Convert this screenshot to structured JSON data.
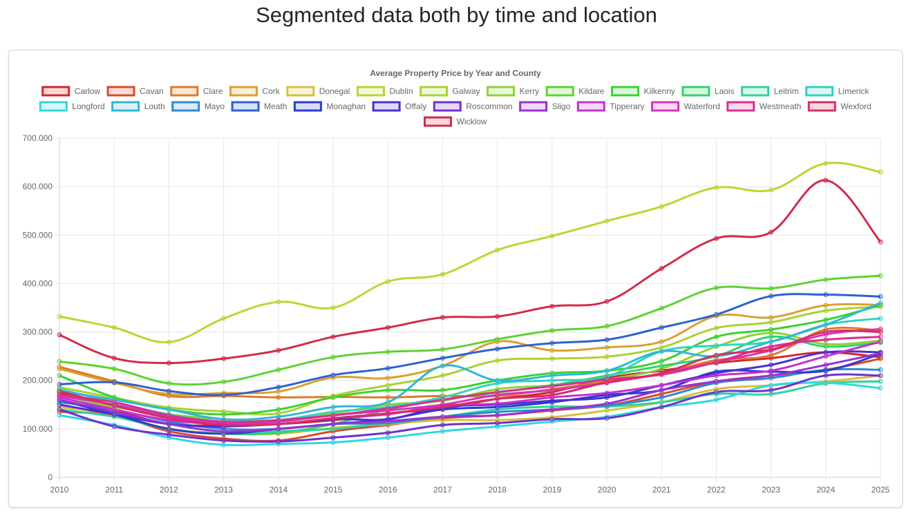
{
  "page": {
    "title": "Segmented data both by time and location"
  },
  "chart_data": {
    "type": "line",
    "title": "Average Property Price by Year and County",
    "xlabel": "",
    "ylabel": "",
    "ylim": [
      0,
      700000
    ],
    "y_ticks": [
      "0",
      "100.000",
      "200.000",
      "300.000",
      "400.000",
      "500.000",
      "600.000",
      "700.000"
    ],
    "grid": true,
    "legend_position": "top",
    "x": [
      "2010",
      "2011",
      "2012",
      "2013",
      "2014",
      "2015",
      "2016",
      "2017",
      "2018",
      "2019",
      "2020",
      "2021",
      "2022",
      "2023",
      "2024",
      "2025"
    ],
    "series": [
      {
        "name": "Carlow",
        "color": "#d3262d",
        "values": [
          175000,
          140000,
          110000,
          108000,
          110000,
          118000,
          132000,
          142000,
          162000,
          176000,
          205000,
          220000,
          236000,
          246000,
          258000,
          248000
        ]
      },
      {
        "name": "Cavan",
        "color": "#d94a2a",
        "values": [
          135000,
          128000,
          95000,
          80000,
          76000,
          95000,
          108000,
          122000,
          128000,
          138000,
          148000,
          172000,
          198000,
          210000,
          222000,
          245000
        ]
      },
      {
        "name": "Clare",
        "color": "#dd7a28",
        "values": [
          228000,
          198000,
          168000,
          168000,
          165000,
          166000,
          165000,
          168000,
          168000,
          182000,
          198000,
          214000,
          242000,
          252000,
          305000,
          303000
        ]
      },
      {
        "name": "Cork",
        "color": "#d9a12e",
        "values": [
          224000,
          195000,
          172000,
          174000,
          177000,
          206000,
          205000,
          230000,
          280000,
          262000,
          268000,
          280000,
          333000,
          330000,
          355000,
          356000
        ]
      },
      {
        "name": "Donegal",
        "color": "#d6c138",
        "values": [
          145000,
          130000,
          100000,
          92000,
          90000,
          102000,
          110000,
          118000,
          118000,
          124000,
          138000,
          155000,
          182000,
          190000,
          198000,
          210000
        ]
      },
      {
        "name": "Dublin",
        "color": "#c1d331",
        "values": [
          332000,
          309000,
          279000,
          328000,
          362000,
          350000,
          404000,
          419000,
          469000,
          498000,
          529000,
          559000,
          598000,
          593000,
          648000,
          630000
        ]
      },
      {
        "name": "Galway",
        "color": "#a9d232",
        "values": [
          186000,
          164000,
          144000,
          136000,
          132000,
          168000,
          190000,
          210000,
          241000,
          245000,
          249000,
          268000,
          308000,
          320000,
          344000,
          352000
        ]
      },
      {
        "name": "Kerry",
        "color": "#8ed235",
        "values": [
          170000,
          145000,
          130000,
          120000,
          118000,
          132000,
          150000,
          158000,
          182000,
          190000,
          202000,
          224000,
          270000,
          298000,
          275000,
          282000
        ]
      },
      {
        "name": "Kildare",
        "color": "#5dd22f",
        "values": [
          239000,
          224000,
          194000,
          197000,
          222000,
          248000,
          259000,
          264000,
          285000,
          303000,
          312000,
          349000,
          391000,
          390000,
          408000,
          416000
        ]
      },
      {
        "name": "Kilkenny",
        "color": "#3ad12f",
        "values": [
          210000,
          165000,
          140000,
          130000,
          140000,
          165000,
          180000,
          180000,
          200000,
          215000,
          220000,
          240000,
          290000,
          305000,
          325000,
          355000
        ]
      },
      {
        "name": "Laois",
        "color": "#30d26b",
        "values": [
          160000,
          130000,
          100000,
          90000,
          92000,
          110000,
          140000,
          160000,
          175000,
          190000,
          210000,
          230000,
          250000,
          290000,
          270000,
          278000
        ]
      },
      {
        "name": "Leitrim",
        "color": "#30d39b",
        "values": [
          140000,
          125000,
          100000,
          90000,
          95000,
          100000,
          112000,
          125000,
          140000,
          146000,
          146000,
          155000,
          172000,
          172000,
          194000,
          198000
        ]
      },
      {
        "name": "Limerick",
        "color": "#32d2c0",
        "values": [
          182000,
          155000,
          130000,
          115000,
          118000,
          135000,
          145000,
          165000,
          194000,
          200000,
          208000,
          260000,
          272000,
          280000,
          315000,
          328000
        ]
      },
      {
        "name": "Longford",
        "color": "#31d7e0",
        "values": [
          128000,
          108000,
          82000,
          67000,
          69000,
          72000,
          82000,
          95000,
          105000,
          115000,
          125000,
          145000,
          160000,
          190000,
          195000,
          184000
        ]
      },
      {
        "name": "Louth",
        "color": "#2fb6d8",
        "values": [
          178000,
          160000,
          140000,
          120000,
          125000,
          145000,
          155000,
          230000,
          200000,
          210000,
          220000,
          260000,
          250000,
          280000,
          315000,
          360000
        ]
      },
      {
        "name": "Mayo",
        "color": "#3088d6",
        "values": [
          155000,
          140000,
          115000,
          100000,
          100000,
          110000,
          112000,
          125000,
          135000,
          140000,
          148000,
          165000,
          195000,
          205000,
          222000,
          222000
        ]
      },
      {
        "name": "Meath",
        "color": "#2c60d2",
        "values": [
          192000,
          196000,
          178000,
          170000,
          186000,
          211000,
          225000,
          246000,
          265000,
          277000,
          284000,
          309000,
          336000,
          374000,
          377000,
          373000
        ]
      },
      {
        "name": "Monaghan",
        "color": "#2b3bd1",
        "values": [
          160000,
          130000,
          100000,
          90000,
          100000,
          110000,
          120000,
          140000,
          145000,
          155000,
          170000,
          180000,
          218000,
          218000,
          220000,
          255000
        ]
      },
      {
        "name": "Offaly",
        "color": "#4a2fd2",
        "values": [
          150000,
          130000,
          110000,
          105000,
          110000,
          120000,
          120000,
          145000,
          150000,
          158000,
          165000,
          190000,
          215000,
          232000,
          258000,
          258000
        ]
      },
      {
        "name": "Roscommon",
        "color": "#702fd2",
        "values": [
          140000,
          105000,
          88000,
          76000,
          74000,
          82000,
          92000,
          108000,
          112000,
          120000,
          122000,
          145000,
          176000,
          180000,
          210000,
          210000
        ]
      },
      {
        "name": "Sligo",
        "color": "#9a2fd2",
        "values": [
          160000,
          135000,
          110000,
          95000,
          100000,
          110000,
          116000,
          125000,
          128000,
          140000,
          152000,
          180000,
          198000,
          210000,
          232000,
          256000
        ]
      },
      {
        "name": "Tipperary",
        "color": "#c430d2",
        "values": [
          165000,
          140000,
          118000,
          110000,
          110000,
          122000,
          130000,
          148000,
          152000,
          165000,
          174000,
          190000,
          210000,
          220000,
          250000,
          280000
        ]
      },
      {
        "name": "Waterford",
        "color": "#d930bd",
        "values": [
          168000,
          150000,
          125000,
          112000,
          115000,
          128000,
          138000,
          150000,
          170000,
          180000,
          195000,
          214000,
          238000,
          262000,
          295000,
          306000
        ]
      },
      {
        "name": "Westmeath",
        "color": "#d92f8f",
        "values": [
          170000,
          155000,
          128000,
          115000,
          118000,
          128000,
          142000,
          160000,
          176000,
          188000,
          202000,
          212000,
          238000,
          270000,
          284000,
          290000
        ]
      },
      {
        "name": "Wexford",
        "color": "#d72d64",
        "values": [
          178000,
          148000,
          122000,
          108000,
          110000,
          122000,
          132000,
          145000,
          162000,
          170000,
          196000,
          215000,
          252000,
          264000,
          300000,
          300000
        ]
      },
      {
        "name": "Wicklow",
        "color": "#d22a48",
        "values": [
          294000,
          246000,
          236000,
          245000,
          262000,
          290000,
          309000,
          330000,
          332000,
          353000,
          363000,
          431000,
          493000,
          506000,
          613000,
          486000
        ]
      }
    ]
  }
}
